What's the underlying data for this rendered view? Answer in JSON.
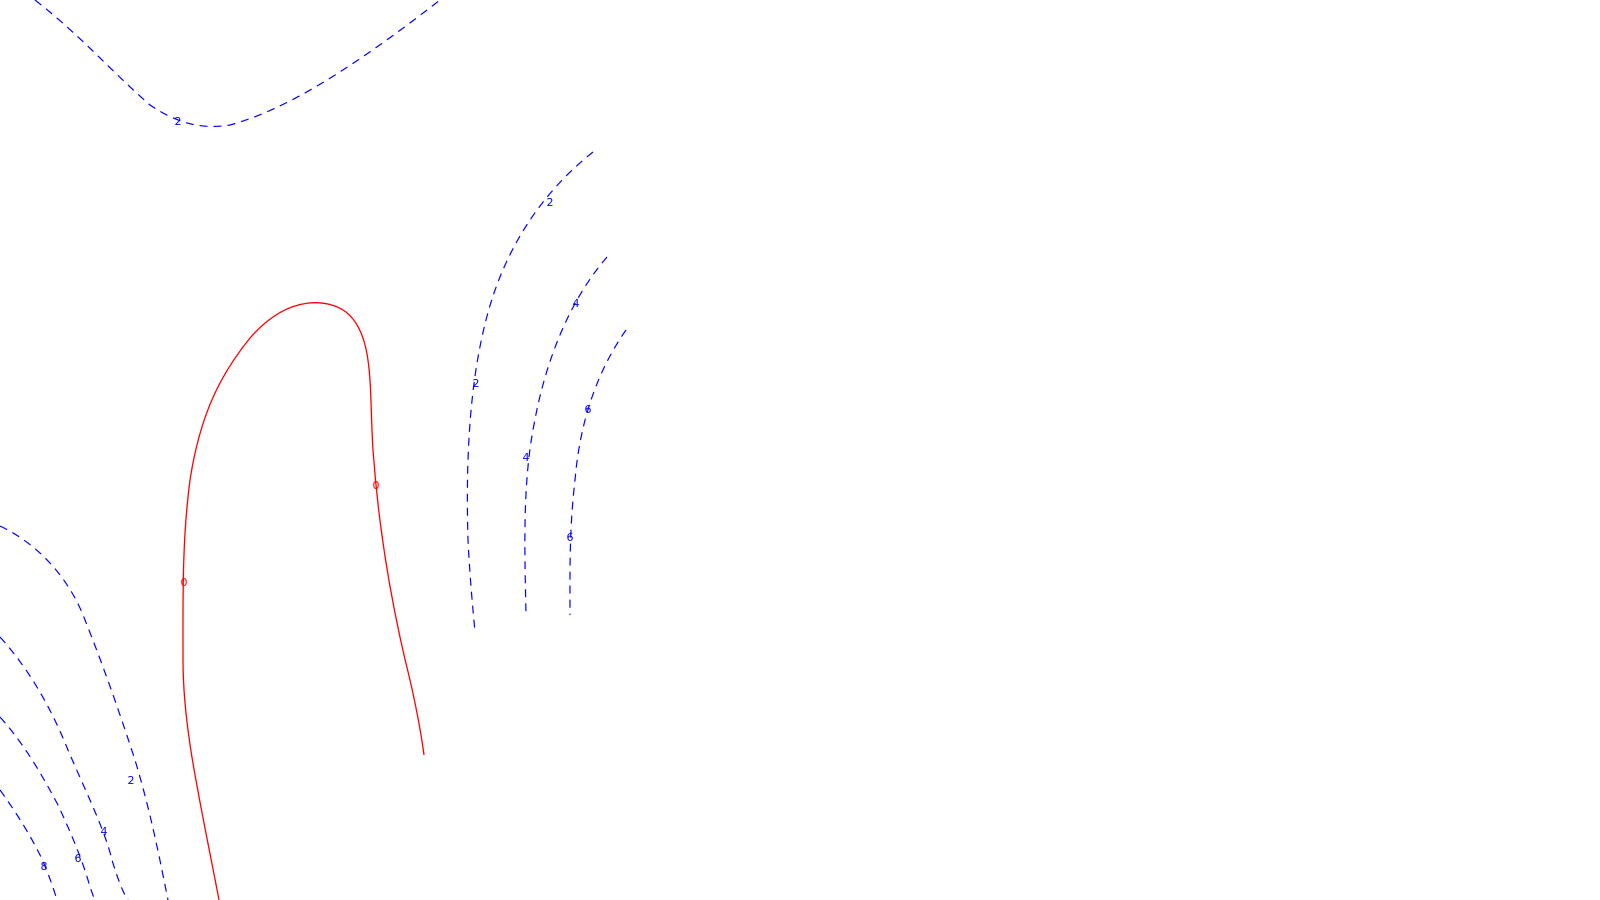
{
  "colors": {
    "background": "#ffffff",
    "zero_contour": "#ff0000",
    "positive_contour": "#0000ff"
  },
  "contours": [
    {
      "label": "2"
    },
    {
      "label": "2"
    },
    {
      "label": "2"
    },
    {
      "label": "4"
    },
    {
      "label": "4"
    },
    {
      "label": "6"
    },
    {
      "label": "6"
    },
    {
      "label": "0"
    },
    {
      "label": "0"
    },
    {
      "label": "2"
    },
    {
      "label": "4"
    },
    {
      "label": "6"
    },
    {
      "label": "8"
    }
  ]
}
